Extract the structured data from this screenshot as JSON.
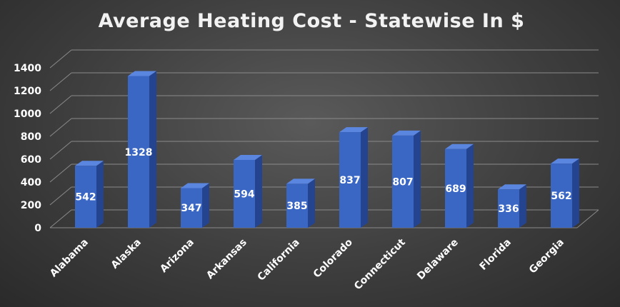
{
  "chart_data": {
    "type": "bar",
    "title": "Average Heating Cost - Statewise In $",
    "categories": [
      "Alabama",
      "Alaska",
      "Arizona",
      "Arkansas",
      "California",
      "Colorado",
      "Connecticut",
      "Delaware",
      "Florida",
      "Georgia"
    ],
    "values": [
      542,
      1328,
      347,
      594,
      385,
      837,
      807,
      689,
      336,
      562
    ],
    "yticks": [
      0,
      200,
      400,
      600,
      800,
      1000,
      1200,
      1400
    ],
    "ylim": [
      0,
      1400
    ],
    "grid": true,
    "legend": "none",
    "bar_color": "#3a66c4",
    "bar_color_dark": "#24448f",
    "bar_color_light": "#5b86e0"
  }
}
